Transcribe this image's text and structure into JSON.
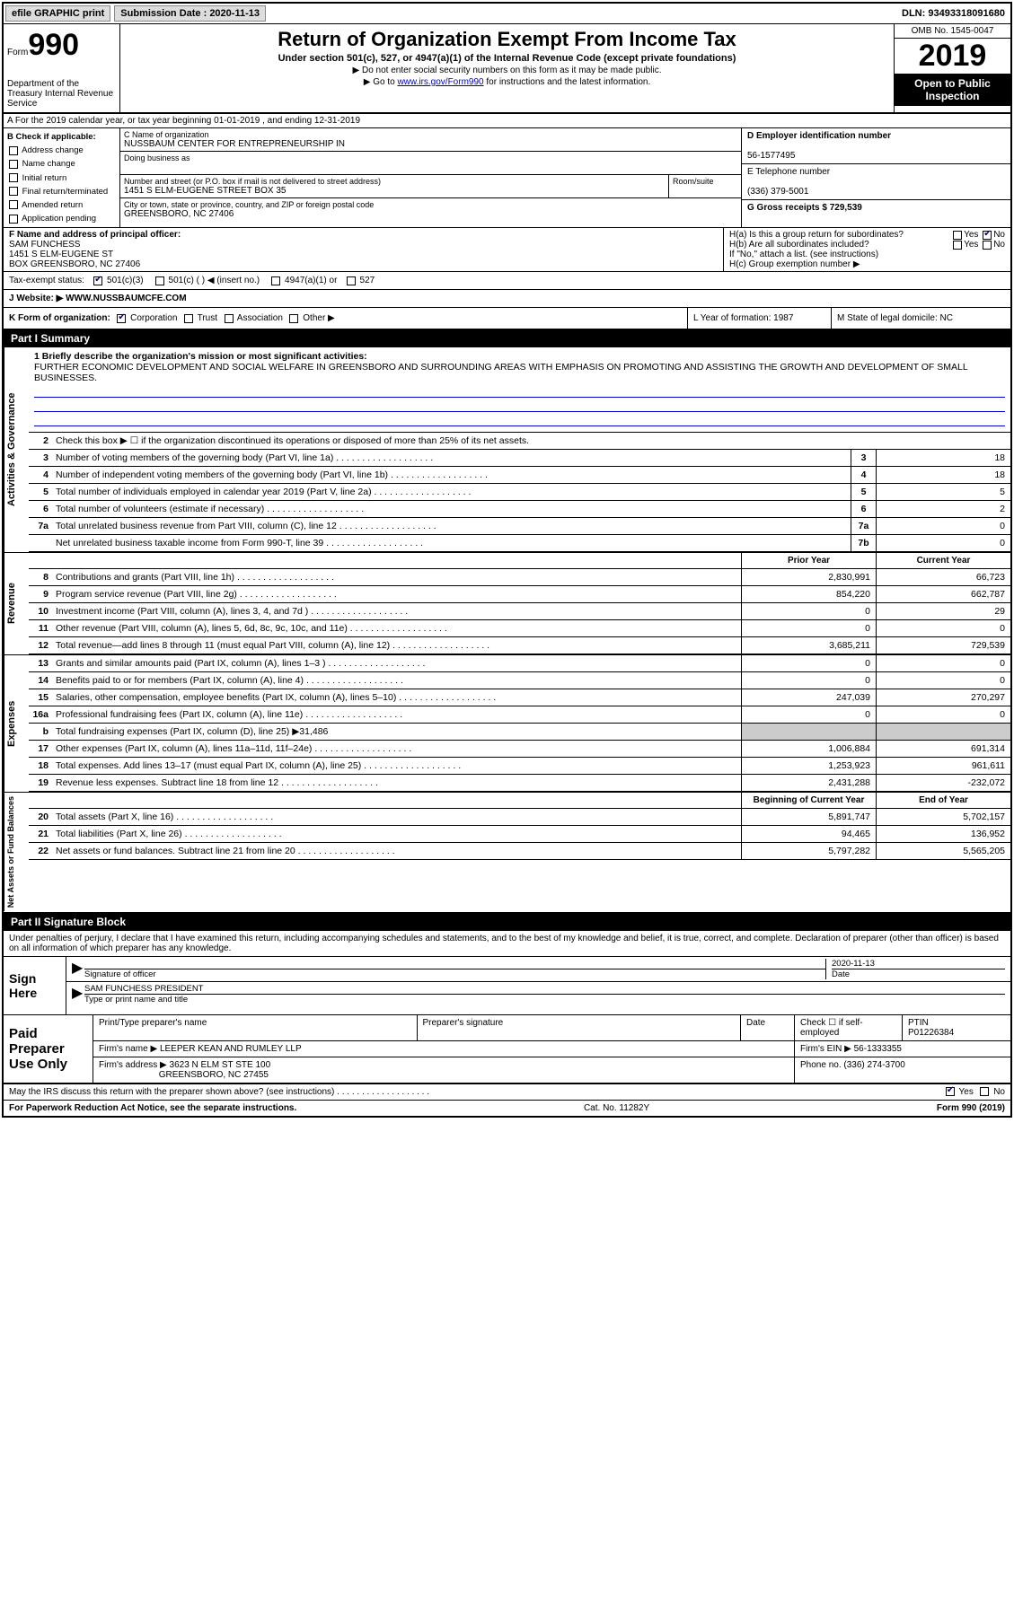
{
  "topbar": {
    "efile": "efile GRAPHIC print",
    "submission_label": "Submission Date : 2020-11-13",
    "dln": "DLN: 93493318091680"
  },
  "header": {
    "form_label": "Form",
    "form_no": "990",
    "dept": "Department of the Treasury Internal Revenue Service",
    "title": "Return of Organization Exempt From Income Tax",
    "sub": "Under section 501(c), 527, or 4947(a)(1) of the Internal Revenue Code (except private foundations)",
    "note1": "▶ Do not enter social security numbers on this form as it may be made public.",
    "note2_pre": "▶ Go to ",
    "note2_link": "www.irs.gov/Form990",
    "note2_post": " for instructions and the latest information.",
    "omb": "OMB No. 1545-0047",
    "year": "2019",
    "inspect": "Open to Public Inspection"
  },
  "row_a": "A For the 2019 calendar year, or tax year beginning 01-01-2019   , and ending 12-31-2019",
  "block_b": {
    "hdr": "B Check if applicable:",
    "items": [
      "Address change",
      "Name change",
      "Initial return",
      "Final return/terminated",
      "Amended return",
      "Application pending"
    ]
  },
  "block_c": {
    "name_label": "C Name of organization",
    "name": "NUSSBAUM CENTER FOR ENTREPRENEURSHIP IN",
    "dba_label": "Doing business as",
    "addr_label": "Number and street (or P.O. box if mail is not delivered to street address)",
    "room_label": "Room/suite",
    "addr": "1451 S ELM-EUGENE STREET BOX 35",
    "city_label": "City or town, state or province, country, and ZIP or foreign postal code",
    "city": "GREENSBORO, NC  27406"
  },
  "block_d": {
    "ein_label": "D Employer identification number",
    "ein": "56-1577495",
    "tel_label": "E Telephone number",
    "tel": "(336) 379-5001",
    "gross_label": "G Gross receipts $ 729,539"
  },
  "block_f": {
    "label": "F  Name and address of principal officer:",
    "name": "SAM FUNCHESS",
    "addr1": "1451 S ELM-EUGENE ST",
    "addr2": "BOX GREENSBORO, NC  27406"
  },
  "block_h": {
    "ha": "H(a)  Is this a group return for subordinates?",
    "hb": "H(b)  Are all subordinates included?",
    "hb_note": "If \"No,\" attach a list. (see instructions)",
    "hc": "H(c)  Group exemption number ▶",
    "yes": "Yes",
    "no": "No"
  },
  "tax_status": {
    "label": "Tax-exempt status:",
    "o1": "501(c)(3)",
    "o2": "501(c) (  ) ◀ (insert no.)",
    "o3": "4947(a)(1) or",
    "o4": "527"
  },
  "website": {
    "label": "J   Website: ▶",
    "val": "WWW.NUSSBAUMCFE.COM"
  },
  "row_k": {
    "k": "K Form of organization:",
    "opts": [
      "Corporation",
      "Trust",
      "Association",
      "Other ▶"
    ],
    "l": "L Year of formation: 1987",
    "m": "M State of legal domicile: NC"
  },
  "part1": {
    "hdr": "Part I      Summary",
    "tab_ag": "Activities & Governance",
    "tab_rev": "Revenue",
    "tab_exp": "Expenses",
    "tab_na": "Net Assets or Fund Balances",
    "l1_label": "1  Briefly describe the organization's mission or most significant activities:",
    "l1_text": "FURTHER ECONOMIC DEVELOPMENT AND SOCIAL WELFARE IN GREENSBORO AND SURROUNDING AREAS WITH EMPHASIS ON PROMOTING AND ASSISTING THE GROWTH AND DEVELOPMENT OF SMALL BUSINESSES.",
    "l2": "Check this box ▶ ☐  if the organization discontinued its operations or disposed of more than 25% of its net assets.",
    "lines_ag": [
      {
        "n": "3",
        "t": "Number of voting members of the governing body (Part VI, line 1a)",
        "b": "3",
        "v": "18"
      },
      {
        "n": "4",
        "t": "Number of independent voting members of the governing body (Part VI, line 1b)",
        "b": "4",
        "v": "18"
      },
      {
        "n": "5",
        "t": "Total number of individuals employed in calendar year 2019 (Part V, line 2a)",
        "b": "5",
        "v": "5"
      },
      {
        "n": "6",
        "t": "Total number of volunteers (estimate if necessary)",
        "b": "6",
        "v": "2"
      },
      {
        "n": "7a",
        "t": "Total unrelated business revenue from Part VIII, column (C), line 12",
        "b": "7a",
        "v": "0"
      },
      {
        "n": "",
        "t": "Net unrelated business taxable income from Form 990-T, line 39",
        "b": "7b",
        "v": "0"
      }
    ],
    "col_prior": "Prior Year",
    "col_curr": "Current Year",
    "lines_rev": [
      {
        "n": "8",
        "t": "Contributions and grants (Part VIII, line 1h)",
        "p": "2,830,991",
        "c": "66,723"
      },
      {
        "n": "9",
        "t": "Program service revenue (Part VIII, line 2g)",
        "p": "854,220",
        "c": "662,787"
      },
      {
        "n": "10",
        "t": "Investment income (Part VIII, column (A), lines 3, 4, and 7d )",
        "p": "0",
        "c": "29"
      },
      {
        "n": "11",
        "t": "Other revenue (Part VIII, column (A), lines 5, 6d, 8c, 9c, 10c, and 11e)",
        "p": "0",
        "c": "0"
      },
      {
        "n": "12",
        "t": "Total revenue—add lines 8 through 11 (must equal Part VIII, column (A), line 12)",
        "p": "3,685,211",
        "c": "729,539"
      }
    ],
    "lines_exp": [
      {
        "n": "13",
        "t": "Grants and similar amounts paid (Part IX, column (A), lines 1–3 )",
        "p": "0",
        "c": "0"
      },
      {
        "n": "14",
        "t": "Benefits paid to or for members (Part IX, column (A), line 4)",
        "p": "0",
        "c": "0"
      },
      {
        "n": "15",
        "t": "Salaries, other compensation, employee benefits (Part IX, column (A), lines 5–10)",
        "p": "247,039",
        "c": "270,297"
      },
      {
        "n": "16a",
        "t": "Professional fundraising fees (Part IX, column (A), line 11e)",
        "p": "0",
        "c": "0"
      },
      {
        "n": "b",
        "t": "Total fundraising expenses (Part IX, column (D), line 25) ▶31,486",
        "p": "",
        "c": "",
        "shade": true
      },
      {
        "n": "17",
        "t": "Other expenses (Part IX, column (A), lines 11a–11d, 11f–24e)",
        "p": "1,006,884",
        "c": "691,314"
      },
      {
        "n": "18",
        "t": "Total expenses. Add lines 13–17 (must equal Part IX, column (A), line 25)",
        "p": "1,253,923",
        "c": "961,611"
      },
      {
        "n": "19",
        "t": "Revenue less expenses. Subtract line 18 from line 12",
        "p": "2,431,288",
        "c": "-232,072"
      }
    ],
    "col_begin": "Beginning of Current Year",
    "col_end": "End of Year",
    "lines_na": [
      {
        "n": "20",
        "t": "Total assets (Part X, line 16)",
        "p": "5,891,747",
        "c": "5,702,157"
      },
      {
        "n": "21",
        "t": "Total liabilities (Part X, line 26)",
        "p": "94,465",
        "c": "136,952"
      },
      {
        "n": "22",
        "t": "Net assets or fund balances. Subtract line 21 from line 20",
        "p": "5,797,282",
        "c": "5,565,205"
      }
    ]
  },
  "part2": {
    "hdr": "Part II      Signature Block",
    "decl": "Under penalties of perjury, I declare that I have examined this return, including accompanying schedules and statements, and to the best of my knowledge and belief, it is true, correct, and complete. Declaration of preparer (other than officer) is based on all information of which preparer has any knowledge.",
    "sign_here": "Sign Here",
    "sig_officer": "Signature of officer",
    "date": "Date",
    "date_val": "2020-11-13",
    "name_title": "SAM FUNCHESS PRESIDENT",
    "type_name": "Type or print name and title",
    "paid": "Paid Preparer Use Only",
    "pt_name": "Print/Type preparer's name",
    "pt_sig": "Preparer's signature",
    "pt_date": "Date",
    "pt_check": "Check ☐ if self-employed",
    "ptin_l": "PTIN",
    "ptin": "P01226384",
    "firm_name_l": "Firm's name     ▶",
    "firm_name": "LEEPER KEAN AND RUMLEY LLP",
    "firm_ein_l": "Firm's EIN ▶",
    "firm_ein": "56-1333355",
    "firm_addr_l": "Firm's address ▶",
    "firm_addr1": "3623 N ELM ST STE 100",
    "firm_addr2": "GREENSBORO, NC  27455",
    "phone_l": "Phone no.",
    "phone": "(336) 274-3700",
    "may": "May the IRS discuss this return with the preparer shown above? (see instructions)",
    "yes": "Yes",
    "no": "No"
  },
  "footer": {
    "left": "For Paperwork Reduction Act Notice, see the separate instructions.",
    "mid": "Cat. No. 11282Y",
    "right": "Form 990 (2019)"
  }
}
